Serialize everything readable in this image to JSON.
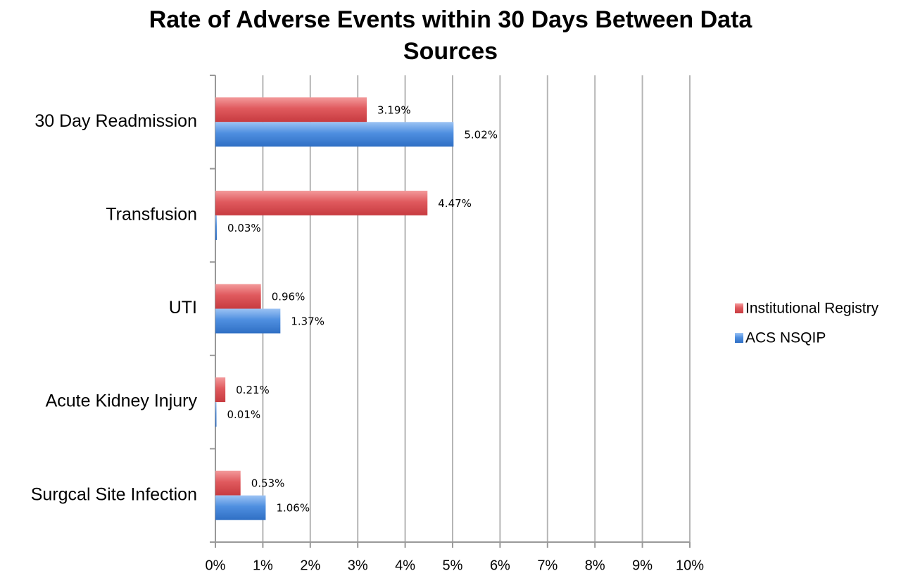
{
  "chart_data": {
    "type": "bar",
    "orientation": "horizontal",
    "title_lines": [
      "Rate of Adverse Events within 30 Days Between Data",
      "Sources"
    ],
    "categories": [
      "30 Day Readmission",
      "Transfusion",
      "UTI",
      "Acute Kidney Injury",
      "Surgcal Site Infection"
    ],
    "series": [
      {
        "name": "Institutional Registry",
        "color": "#e05a5e",
        "values": [
          3.19,
          4.47,
          0.96,
          0.21,
          0.53
        ],
        "labels": [
          "3.19%",
          "4.47%",
          "0.96%",
          "0.21%",
          "0.53%"
        ]
      },
      {
        "name": "ACS NSQIP",
        "color": "#4f8fe0",
        "values": [
          5.02,
          0.03,
          1.37,
          0.01,
          1.06
        ],
        "labels": [
          "5.02%",
          "0.03%",
          "1.37%",
          "0.01%",
          "1.06%"
        ]
      }
    ],
    "xlim": [
      0,
      10
    ],
    "x_ticks": [
      0,
      1,
      2,
      3,
      4,
      5,
      6,
      7,
      8,
      9,
      10
    ],
    "x_tick_labels": [
      "0%",
      "1%",
      "2%",
      "3%",
      "4%",
      "5%",
      "6%",
      "7%",
      "8%",
      "9%",
      "10%"
    ],
    "grid": true,
    "legend_position": "right"
  }
}
